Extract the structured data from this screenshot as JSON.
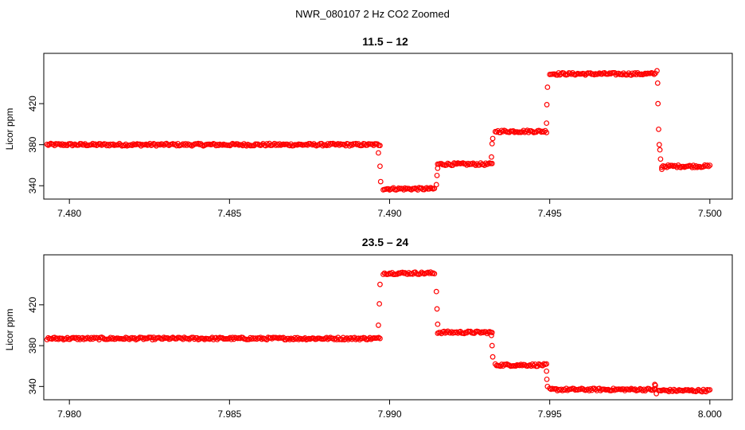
{
  "figure": {
    "title": "NWR_080107  2 Hz CO2 Zoomed"
  },
  "chart_data": [
    {
      "type": "scatter",
      "title": "11.5 – 12",
      "xlabel": "",
      "ylabel": "Licor ppm",
      "xlim": [
        7.4792,
        7.5007
      ],
      "ylim": [
        327,
        469
      ],
      "xticks": [
        7.48,
        7.485,
        7.49,
        7.495,
        7.5
      ],
      "xtick_labels": [
        "7.480",
        "7.485",
        "7.490",
        "7.495",
        "7.500"
      ],
      "yticks": [
        340,
        380,
        420
      ],
      "ytick_labels": [
        "340",
        "380",
        "420"
      ],
      "marker": "open-circle",
      "color": "#ff0000",
      "levels": [
        {
          "x_start": 7.4793,
          "x_end": 7.4897,
          "y": 380
        },
        {
          "x_start": 7.4898,
          "x_end": 7.4914,
          "y": 337
        },
        {
          "x_start": 7.4915,
          "x_end": 7.4932,
          "y": 361
        },
        {
          "x_start": 7.4933,
          "x_end": 7.4949,
          "y": 393
        },
        {
          "x_start": 7.495,
          "x_end": 7.4983,
          "y": 449
        },
        {
          "x_start": 7.4985,
          "x_end": 7.5,
          "y": 359
        }
      ],
      "transition_points": [
        {
          "x": 7.48965,
          "y": 372
        },
        {
          "x": 7.4897,
          "y": 359
        },
        {
          "x": 7.48972,
          "y": 344
        },
        {
          "x": 7.49146,
          "y": 341
        },
        {
          "x": 7.49148,
          "y": 350
        },
        {
          "x": 7.4915,
          "y": 357
        },
        {
          "x": 7.49318,
          "y": 368
        },
        {
          "x": 7.4932,
          "y": 381
        },
        {
          "x": 7.49322,
          "y": 386
        },
        {
          "x": 7.4949,
          "y": 401
        },
        {
          "x": 7.49491,
          "y": 419
        },
        {
          "x": 7.49493,
          "y": 436
        },
        {
          "x": 7.49835,
          "y": 452
        },
        {
          "x": 7.49837,
          "y": 440
        },
        {
          "x": 7.49838,
          "y": 420
        },
        {
          "x": 7.4984,
          "y": 395
        },
        {
          "x": 7.49842,
          "y": 380
        },
        {
          "x": 7.49844,
          "y": 375
        },
        {
          "x": 7.49846,
          "y": 366
        },
        {
          "x": 7.4985,
          "y": 356
        }
      ]
    },
    {
      "type": "scatter",
      "title": "23.5 – 24",
      "xlabel": "",
      "ylabel": "Licor ppm",
      "xlim": [
        7.9792,
        8.0007
      ],
      "ylim": [
        327,
        469
      ],
      "xticks": [
        7.98,
        7.985,
        7.99,
        7.995,
        8.0
      ],
      "xtick_labels": [
        "7.980",
        "7.985",
        "7.990",
        "7.995",
        "8.000"
      ],
      "yticks": [
        340,
        380,
        420
      ],
      "ytick_labels": [
        "340",
        "380",
        "420"
      ],
      "marker": "open-circle",
      "color": "#ff0000",
      "levels": [
        {
          "x_start": 7.9793,
          "x_end": 7.9897,
          "y": 387
        },
        {
          "x_start": 7.9898,
          "x_end": 7.9914,
          "y": 451
        },
        {
          "x_start": 7.9915,
          "x_end": 7.9932,
          "y": 393
        },
        {
          "x_start": 7.9933,
          "x_end": 7.9949,
          "y": 361
        },
        {
          "x_start": 7.995,
          "x_end": 7.9983,
          "y": 337
        },
        {
          "x_start": 7.9984,
          "x_end": 8.0,
          "y": 336
        }
      ],
      "transition_points": [
        {
          "x": 7.98965,
          "y": 400
        },
        {
          "x": 7.98968,
          "y": 421
        },
        {
          "x": 7.9897,
          "y": 440
        },
        {
          "x": 7.99146,
          "y": 433
        },
        {
          "x": 7.99148,
          "y": 416
        },
        {
          "x": 7.9915,
          "y": 401
        },
        {
          "x": 7.99318,
          "y": 390
        },
        {
          "x": 7.9932,
          "y": 380
        },
        {
          "x": 7.99322,
          "y": 369
        },
        {
          "x": 7.9949,
          "y": 355
        },
        {
          "x": 7.99491,
          "y": 347
        },
        {
          "x": 7.99493,
          "y": 340
        },
        {
          "x": 7.99828,
          "y": 342
        },
        {
          "x": 7.9983,
          "y": 341
        },
        {
          "x": 7.99833,
          "y": 333
        }
      ]
    }
  ]
}
